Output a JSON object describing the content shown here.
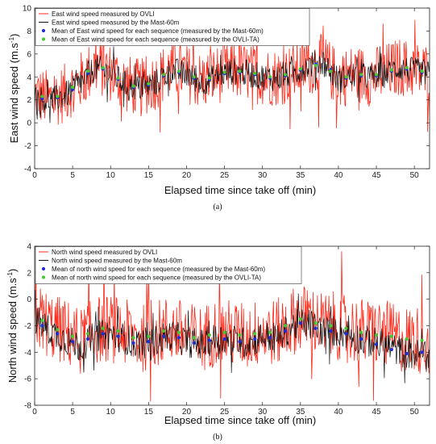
{
  "chart_data": [
    {
      "type": "line",
      "panel_label": "(a)",
      "xlabel": "Elapsed time since take off (min)",
      "ylabel": "East wind speed (m.s",
      "ylabel_sup": "-1",
      "ylabel_close": ")",
      "xlim": [
        0,
        52
      ],
      "ylim": [
        -4,
        10
      ],
      "xticks": [
        0,
        5,
        10,
        15,
        20,
        25,
        30,
        35,
        40,
        45,
        50
      ],
      "yticks": [
        -4,
        -2,
        0,
        2,
        4,
        6,
        8,
        10
      ],
      "grid": false,
      "legend_position": "top-left",
      "series": [
        {
          "name": "East wind speed  measured by OVLI",
          "color": "#ff2a1a",
          "kind": "line",
          "x": [
            0,
            2,
            4,
            6,
            8,
            10,
            12,
            14,
            16,
            18,
            20,
            22,
            24,
            26,
            28,
            30,
            32,
            34,
            36,
            38,
            40,
            42,
            44,
            46,
            48,
            50,
            52
          ],
          "values": [
            2.5,
            2.0,
            2.6,
            3.6,
            5.0,
            4.4,
            3.4,
            3.0,
            3.7,
            4.8,
            4.3,
            3.6,
            4.2,
            4.6,
            4.4,
            4.1,
            4.0,
            4.4,
            5.0,
            5.2,
            3.8,
            4.3,
            4.0,
            4.3,
            4.9,
            4.6,
            4.4
          ]
        },
        {
          "name": "East wind speed measured by the Mast-60m",
          "color": "#111111",
          "kind": "line",
          "x": [
            0,
            2,
            4,
            6,
            8,
            10,
            12,
            14,
            16,
            18,
            20,
            22,
            24,
            26,
            28,
            30,
            32,
            34,
            36,
            38,
            40,
            42,
            44,
            46,
            48,
            50,
            52
          ],
          "values": [
            2.2,
            1.9,
            2.4,
            3.4,
            4.8,
            4.3,
            3.3,
            3.0,
            3.5,
            4.6,
            4.2,
            3.5,
            4.1,
            4.5,
            4.3,
            4.0,
            3.9,
            4.3,
            5.0,
            5.3,
            3.7,
            4.2,
            4.0,
            4.2,
            4.8,
            4.5,
            4.3
          ]
        },
        {
          "name": "Mean of East wind speed for each sequence (measured by the Mast-60m)",
          "color": "#1f2bd6",
          "kind": "markers",
          "x": [
            1,
            3,
            5,
            7,
            9,
            11,
            13,
            15,
            17,
            19,
            21,
            23,
            25,
            27,
            29,
            31,
            33,
            35,
            37,
            39,
            41,
            43,
            45,
            47,
            49,
            51
          ],
          "values": [
            2.1,
            2.2,
            2.9,
            4.3,
            4.7,
            3.8,
            3.1,
            3.3,
            4.1,
            4.4,
            3.9,
            3.8,
            4.3,
            4.4,
            4.2,
            3.9,
            4.1,
            4.6,
            5.1,
            4.6,
            3.9,
            4.1,
            4.1,
            4.5,
            4.7,
            4.4
          ]
        },
        {
          "name": "Mean of East wind speed for each sequence (measured by the OVLI-TA)",
          "color": "#46c832",
          "kind": "markers",
          "x": [
            1,
            3,
            5,
            7,
            9,
            11,
            13,
            15,
            17,
            19,
            21,
            23,
            25,
            27,
            29,
            31,
            33,
            35,
            37,
            39,
            41,
            43,
            45,
            47,
            49,
            51
          ],
          "values": [
            2.3,
            2.3,
            3.1,
            4.5,
            4.8,
            3.9,
            3.2,
            3.4,
            4.2,
            4.5,
            4.0,
            3.9,
            4.4,
            4.5,
            4.3,
            4.0,
            4.2,
            4.7,
            5.0,
            4.5,
            4.0,
            4.2,
            4.2,
            4.6,
            4.8,
            4.5
          ]
        }
      ]
    },
    {
      "type": "line",
      "panel_label": "(b)",
      "xlabel": "Elapsed time since take off (min)",
      "ylabel": "North wind speed (m.s",
      "ylabel_sup": "-1",
      "ylabel_close": ")",
      "xlim": [
        0,
        52
      ],
      "ylim": [
        -8,
        4
      ],
      "xticks": [
        0,
        5,
        10,
        15,
        20,
        25,
        30,
        35,
        40,
        45,
        50
      ],
      "yticks": [
        -8,
        -6,
        -4,
        -2,
        0,
        2,
        4
      ],
      "grid": false,
      "legend_position": "top-left",
      "series": [
        {
          "name": "North wind speed  measured by OVLI",
          "color": "#ff2a1a",
          "kind": "line",
          "x": [
            0,
            2,
            4,
            6,
            8,
            10,
            12,
            14,
            16,
            18,
            20,
            22,
            24,
            26,
            28,
            30,
            32,
            34,
            36,
            38,
            40,
            42,
            44,
            46,
            48,
            50,
            52
          ],
          "values": [
            -1.2,
            -2.0,
            -2.5,
            -3.2,
            -2.3,
            -2.2,
            -2.6,
            -3.0,
            -2.6,
            -2.2,
            -2.8,
            -3.0,
            -2.4,
            -2.6,
            -2.8,
            -2.4,
            -2.5,
            -1.6,
            -1.4,
            -2.0,
            -2.0,
            -2.3,
            -2.6,
            -2.6,
            -3.0,
            -3.0,
            -3.2
          ]
        },
        {
          "name": "North wind speed measured by the Mast-60m",
          "color": "#111111",
          "kind": "line",
          "x": [
            0,
            2,
            4,
            6,
            8,
            10,
            12,
            14,
            16,
            18,
            20,
            22,
            24,
            26,
            28,
            30,
            32,
            34,
            36,
            38,
            40,
            42,
            44,
            46,
            48,
            50,
            52
          ],
          "values": [
            -1.5,
            -2.4,
            -3.0,
            -3.6,
            -2.8,
            -2.6,
            -3.0,
            -3.4,
            -3.1,
            -2.7,
            -3.2,
            -3.4,
            -2.9,
            -3.1,
            -3.3,
            -2.8,
            -2.9,
            -2.0,
            -1.8,
            -2.4,
            -2.4,
            -2.8,
            -3.2,
            -3.4,
            -3.9,
            -4.2,
            -4.0
          ]
        },
        {
          "name": "Mean of north wind speed for each sequence (measured by the Mast-60m)",
          "color": "#1f2bd6",
          "kind": "markers",
          "x": [
            1,
            3,
            5,
            7,
            9,
            11,
            13,
            15,
            17,
            19,
            21,
            23,
            25,
            27,
            29,
            31,
            33,
            35,
            37,
            39,
            41,
            43,
            45,
            47,
            49,
            51
          ],
          "values": [
            -2.0,
            -2.6,
            -3.2,
            -3.0,
            -2.6,
            -2.8,
            -3.3,
            -3.2,
            -2.8,
            -2.9,
            -3.3,
            -3.1,
            -3.0,
            -3.2,
            -3.0,
            -2.9,
            -2.4,
            -1.8,
            -2.2,
            -2.4,
            -2.6,
            -3.0,
            -3.4,
            -3.8,
            -4.1,
            -4.0
          ]
        },
        {
          "name": "Mean of north wind speed for each sequence (measured by the OVLI-TA)",
          "color": "#46c832",
          "kind": "markers",
          "x": [
            1,
            3,
            5,
            7,
            9,
            11,
            13,
            15,
            17,
            19,
            21,
            23,
            25,
            27,
            29,
            31,
            33,
            35,
            37,
            39,
            41,
            43,
            45,
            47,
            49,
            51
          ],
          "values": [
            -1.6,
            -2.3,
            -2.8,
            -2.6,
            -2.2,
            -2.4,
            -2.9,
            -2.8,
            -2.4,
            -2.5,
            -2.9,
            -2.7,
            -2.5,
            -2.7,
            -2.6,
            -2.5,
            -2.0,
            -1.5,
            -1.8,
            -2.0,
            -2.2,
            -2.5,
            -2.7,
            -2.8,
            -3.0,
            -3.1
          ]
        }
      ]
    }
  ]
}
